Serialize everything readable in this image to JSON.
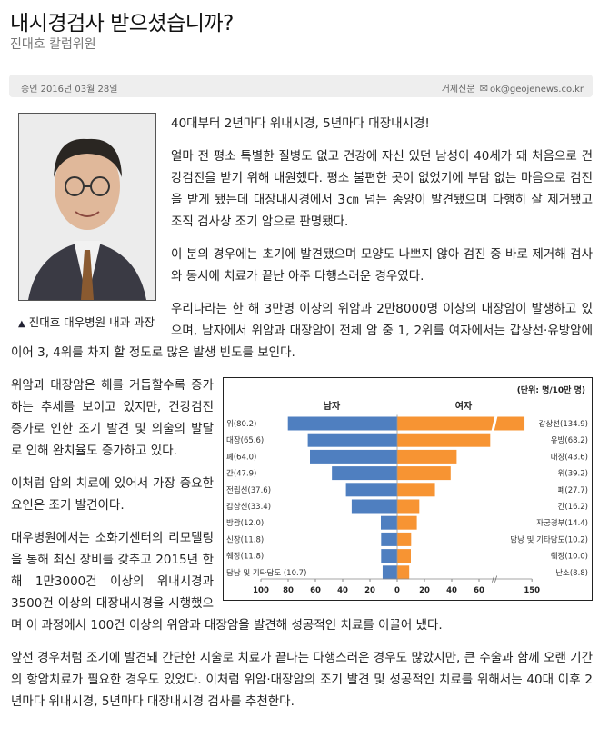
{
  "article": {
    "title": "내시경검사 받으셨습니까?",
    "byline": "진대호 칼럼위원",
    "meta": {
      "date": "승인 2016년 03월 28일",
      "source": "거제신문",
      "email_icon": "envelope-icon",
      "email": "ok@geojenews.co.kr"
    },
    "photo_caption": "진대호 대우병원 내과 과장",
    "paragraphs": [
      "40대부터 2년마다 위내시경, 5년마다 대장내시경!",
      "얼마 전 평소 특별한 질병도 없고 건강에 자신 있던 남성이 40세가 돼 처음으로 건강검진을 받기 위해 내원했다. 평소 불편한 곳이 없었기에 부담 없는 마음으로 검진을 받게 됐는데 대장내시경에서 3㎝ 넘는 종양이 발견됐으며 다행히 잘 제거됐고 조직 검사상 조기 암으로 판명됐다.",
      "이 분의 경우에는 초기에 발견됐으며 모양도 나쁘지 않아 검진 중 바로 제거해 검사와 동시에 치료가 끝난 아주 다행스러운 경우였다.",
      "우리나라는 한 해 3만명 이상의 위암과 2만8000명 이상의 대장암이 발생하고 있으며, 남자에서 위암과 대장암이 전체 암 중 1, 2위를 여자에서는 갑상선·유방암에 이어 3, 4위를 차지 할 정도로 많은 발생 빈도를 보인다.",
      "위암과 대장암은 해를 거듭할수록 증가하는 추세를 보이고 있지만, 건강검진 증가로 인한 조기 발견 및 의술의 발달로 인해 완치율도 증가하고 있다.",
      "이처럼 암의 치료에 있어서 가장 중요한 요인은 조기 발견이다.",
      "대우병원에서는 소화기센터의 리모델링을 통해 최신 장비를 갖추고 2015년 한 해 1만3000건 이상의 위내시경과 3500건 이상의 대장내시경을 시행했으며 이 과정에서 100건 이상의 위암과 대장암을 발견해 성공적인 치료를 이끌어 냈다.",
      "앞선 경우처럼 조기에 발견돼 간단한 시술로 치료가 끝나는 다행스러운 경우도 많았지만, 큰 수술과 함께 오랜 기간의 항암치료가 필요한 경우도 있었다. 이처럼 위암·대장암의 조기 발견 및 성공적인 치료를 위해서는 40대 이후 2년마다 위내시경, 5년마다 대장내시경 검사를 추천한다."
    ]
  },
  "chart_data": {
    "type": "bar",
    "orientation": "horizontal-butterfly",
    "unit_label": "(단위: 명/10만 명)",
    "series": [
      {
        "name": "남자",
        "color": "#4f7fc0",
        "labels": [
          "위(80.2)",
          "대장(65.6)",
          "폐(64.0)",
          "간(47.9)",
          "전립선(37.6)",
          "갑상선(33.4)",
          "방광(12.0)",
          "신장(11.8)",
          "췌장(11.8)",
          "담낭 및 기타담도 (10.7)"
        ],
        "values": [
          80.2,
          65.6,
          64.0,
          47.9,
          37.6,
          33.4,
          12.0,
          11.8,
          11.8,
          10.7
        ]
      },
      {
        "name": "여자",
        "color": "#f79433",
        "labels": [
          "갑상선(134.9)",
          "유방(68.2)",
          "대장(43.6)",
          "위(39.2)",
          "폐(27.7)",
          "간(16.2)",
          "자궁경부(14.4)",
          "담낭 및 기타담도(10.2)",
          "췌장(10.0)",
          "난소(8.8)"
        ],
        "values": [
          134.9,
          68.2,
          43.6,
          39.2,
          27.7,
          16.2,
          14.4,
          10.2,
          10.0,
          8.8
        ]
      }
    ],
    "x_ticks_left": [
      "100",
      "80",
      "60",
      "40",
      "20"
    ],
    "x_ticks_right": [
      "0",
      "20",
      "40",
      "60",
      "150"
    ],
    "axis_break": true,
    "xlim_left": [
      0,
      100
    ],
    "xlim_right": [
      0,
      150
    ]
  }
}
